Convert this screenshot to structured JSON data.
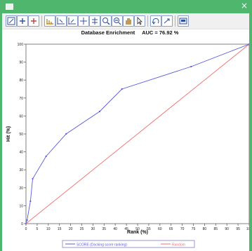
{
  "window": {
    "close_glyph": "×",
    "titlebar_color": "#4fb66e"
  },
  "toolbar": {
    "buttons": [
      "select-zoom-icon",
      "add-point-icon",
      "remove-point-icon",
      "fit-all-icon",
      "fit-x-icon",
      "fit-y-icon",
      "pan-icon",
      "stretch-icon",
      "zoom-in-icon",
      "zoom-out-icon",
      "hand-icon",
      "pointer-icon",
      "undo-icon",
      "redo-icon",
      "save-image-icon"
    ]
  },
  "chart_data": {
    "type": "line",
    "title": "Database Enrichment",
    "subtitle": "AUC = 76.92 %",
    "xlabel": "Rank (%)",
    "ylabel": "Hit (%)",
    "xlim": [
      0,
      100
    ],
    "ylim": [
      0,
      100
    ],
    "xticks": [
      0,
      5,
      10,
      15,
      20,
      25,
      30,
      35,
      40,
      45,
      50,
      55,
      60,
      65,
      70,
      75,
      80,
      85,
      90,
      95,
      100
    ],
    "yticks": [
      0,
      10,
      20,
      30,
      40,
      50,
      60,
      70,
      80,
      90,
      100
    ],
    "grid": false,
    "legend_position": "bottom-center",
    "series": [
      {
        "name": "SCORE (Docking score ranking)",
        "color": "#5a5adc",
        "x": [
          0,
          0.5,
          2,
          3,
          9,
          18,
          33,
          43,
          74,
          100
        ],
        "y": [
          0,
          2,
          12.5,
          25,
          37.5,
          50,
          62.5,
          75,
          87.5,
          100
        ]
      },
      {
        "name": "Random",
        "color": "#f07070",
        "x": [
          0,
          100
        ],
        "y": [
          0,
          100
        ]
      }
    ]
  }
}
